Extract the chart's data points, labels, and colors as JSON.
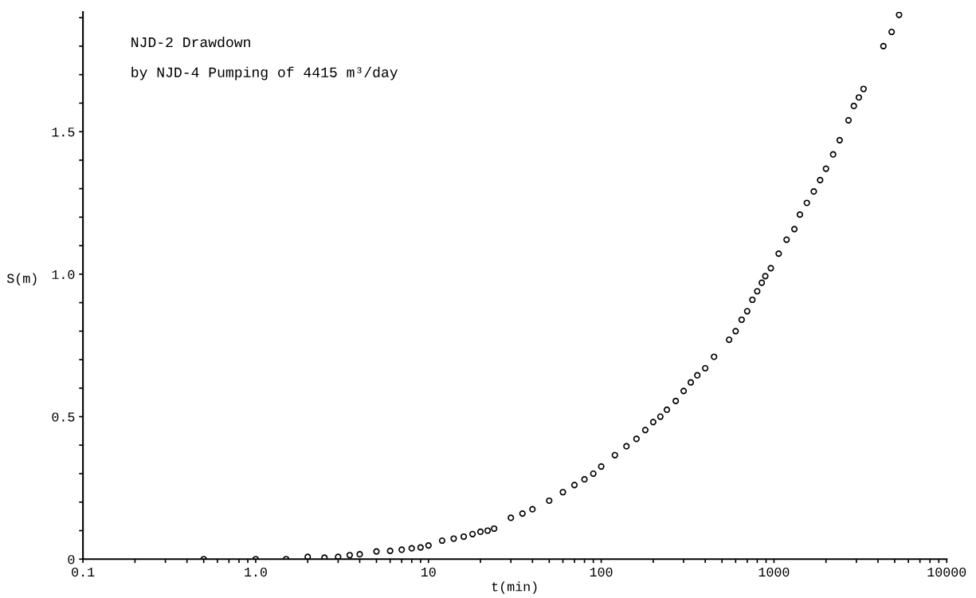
{
  "chart_data": {
    "type": "scatter",
    "xlabel": "t(min)",
    "ylabel": "S(m)",
    "log": "x",
    "marker": "circle",
    "annotations": [
      "NJD-2 Drawdown",
      "by NJD-4 Pumping of 4415 m³/day"
    ],
    "xlim": [
      0.1,
      10000
    ],
    "ylim": [
      0,
      1.92
    ],
    "xticks": [
      {
        "value": 0.1,
        "label": "0.1"
      },
      {
        "value": 0.2,
        "label": null
      },
      {
        "value": 0.3,
        "label": null
      },
      {
        "value": 0.4,
        "label": null
      },
      {
        "value": 0.5,
        "label": null
      },
      {
        "value": 0.6,
        "label": null
      },
      {
        "value": 0.7,
        "label": null
      },
      {
        "value": 0.8,
        "label": null
      },
      {
        "value": 0.9,
        "label": null
      },
      {
        "value": 1,
        "label": "1.0"
      },
      {
        "value": 2,
        "label": null
      },
      {
        "value": 3,
        "label": null
      },
      {
        "value": 4,
        "label": null
      },
      {
        "value": 5,
        "label": null
      },
      {
        "value": 6,
        "label": null
      },
      {
        "value": 7,
        "label": null
      },
      {
        "value": 8,
        "label": null
      },
      {
        "value": 9,
        "label": null
      },
      10,
      {
        "value": 20,
        "label": null
      },
      {
        "value": 30,
        "label": null
      },
      {
        "value": 40,
        "label": null
      },
      {
        "value": 50,
        "label": null
      },
      {
        "value": 60,
        "label": null
      },
      {
        "value": 70,
        "label": null
      },
      {
        "value": 80,
        "label": null
      },
      {
        "value": 90,
        "label": null
      },
      100,
      {
        "value": 200,
        "label": null
      },
      {
        "value": 300,
        "label": null
      },
      {
        "value": 400,
        "label": null
      },
      {
        "value": 500,
        "label": null
      },
      {
        "value": 600,
        "label": null
      },
      {
        "value": 700,
        "label": null
      },
      {
        "value": 800,
        "label": null
      },
      {
        "value": 900,
        "label": null
      },
      1000,
      {
        "value": 2000,
        "label": null
      },
      {
        "value": 3000,
        "label": null
      },
      {
        "value": 4000,
        "label": null
      },
      {
        "value": 5000,
        "label": null
      },
      {
        "value": 6000,
        "label": null
      },
      {
        "value": 7000,
        "label": null
      },
      {
        "value": 8000,
        "label": null
      },
      {
        "value": 9000,
        "label": null
      },
      10000
    ],
    "yticks": [
      0,
      {
        "value": 0.1,
        "label": null
      },
      {
        "value": 0.2,
        "label": null
      },
      {
        "value": 0.3,
        "label": null
      },
      {
        "value": 0.4,
        "label": null
      },
      0.5,
      {
        "value": 0.6,
        "label": null
      },
      {
        "value": 0.7,
        "label": null
      },
      {
        "value": 0.8,
        "label": null
      },
      {
        "value": 0.9,
        "label": null
      },
      {
        "value": 1.0,
        "label": "1.0"
      },
      {
        "value": 1.1,
        "label": null
      },
      {
        "value": 1.2,
        "label": null
      },
      {
        "value": 1.3,
        "label": null
      },
      {
        "value": 1.4,
        "label": null
      },
      1.5,
      {
        "value": 1.6,
        "label": null
      },
      {
        "value": 1.7,
        "label": null
      },
      {
        "value": 1.8,
        "label": null
      },
      {
        "value": 1.9,
        "label": null
      }
    ],
    "series": [
      {
        "color": "#000000",
        "x": [
          0.5,
          1,
          1.5,
          2,
          2.5,
          3,
          3.5,
          4,
          5,
          6,
          7,
          8,
          9,
          10,
          12,
          14,
          16,
          18,
          20,
          22,
          24,
          30,
          35,
          40,
          50,
          60,
          70,
          80,
          90,
          100,
          120,
          140,
          160,
          180,
          200,
          220,
          240,
          270,
          300,
          330,
          360,
          400,
          450,
          550,
          600,
          650,
          700,
          750,
          800,
          850,
          891,
          959,
          1065,
          1183,
          1313,
          1413,
          1550,
          1700,
          1850,
          2000,
          2200,
          2400,
          2700,
          2900,
          3100,
          3300,
          4300,
          4800,
          5300
        ],
        "values": [
          0,
          0,
          0,
          0.008,
          0.005,
          0.008,
          0.014,
          0.017,
          0.027,
          0.029,
          0.033,
          0.038,
          0.041,
          0.048,
          0.065,
          0.072,
          0.079,
          0.088,
          0.096,
          0.1,
          0.107,
          0.145,
          0.16,
          0.175,
          0.205,
          0.235,
          0.26,
          0.28,
          0.3,
          0.325,
          0.365,
          0.396,
          0.422,
          0.453,
          0.481,
          0.5,
          0.524,
          0.555,
          0.59,
          0.62,
          0.645,
          0.67,
          0.71,
          0.77,
          0.8,
          0.84,
          0.87,
          0.91,
          0.94,
          0.97,
          0.993,
          1.021,
          1.072,
          1.121,
          1.158,
          1.209,
          1.25,
          1.29,
          1.33,
          1.37,
          1.42,
          1.47,
          1.54,
          1.59,
          1.62,
          1.65,
          1.8,
          1.85,
          1.91
        ]
      }
    ]
  }
}
